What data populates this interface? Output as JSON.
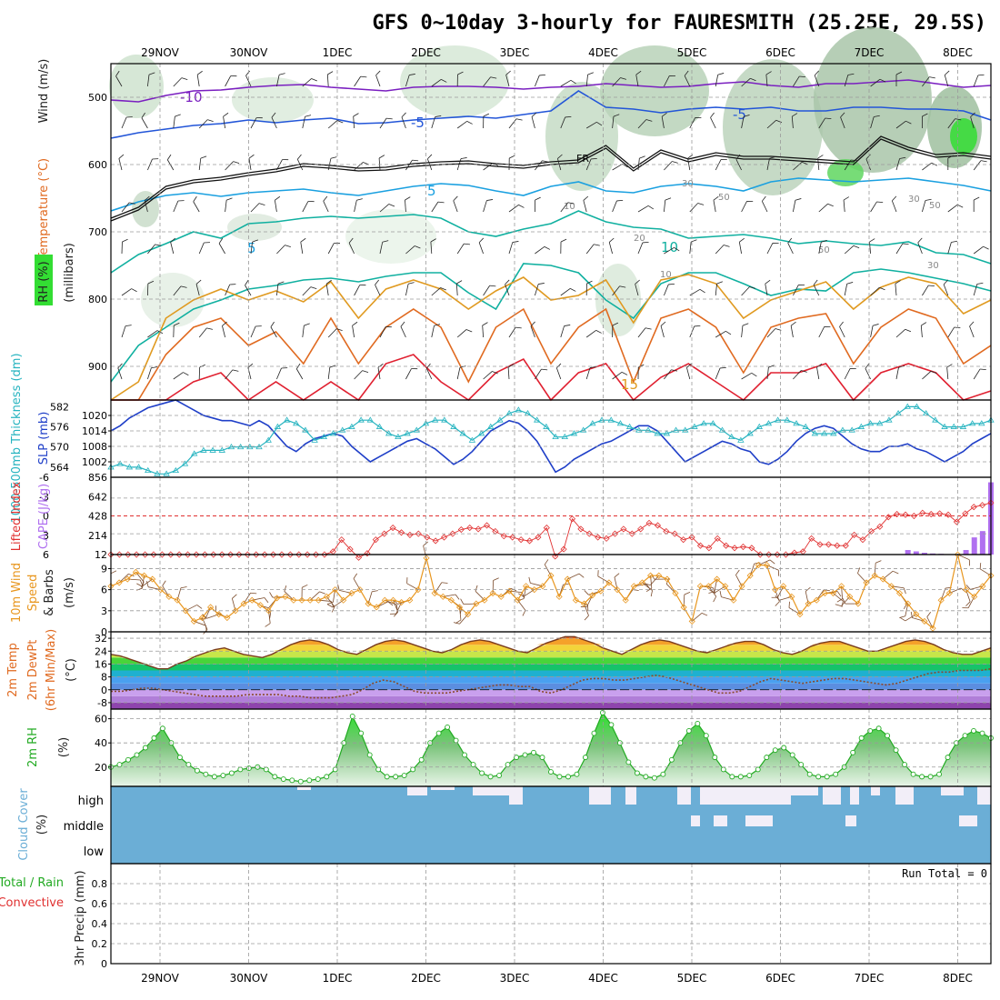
{
  "title": "GFS 0~10day 3-hourly for FAURESMITH (25.25E, 29.5S)",
  "colors": {
    "temp_cold": "#7a1fc0",
    "temp_blue": "#2255d8",
    "temp_cyan": "#1aa0e0",
    "temp_teal": "#10b0a0",
    "temp_warm": "#e09a20",
    "temp_orange": "#e06a20",
    "temp_red": "#e02030",
    "temp_magenta": "#d010a0",
    "rh_green": "#33dd33",
    "slp": "#1f3fc8",
    "thickness": "#27b4c0",
    "lifted": "#e03030",
    "cape": "#b070f0",
    "wind10": "#e8961e",
    "rh2m": "#22aa22",
    "cloud": "#6baed6",
    "cloud_clear": "#f2eef8"
  },
  "chart_data": [
    {
      "panel": "upper-air",
      "type": "heatmap",
      "title": "GFS 0~10day 3-hourly for FAURESMITH (25.25E, 29.5S)",
      "x_dates": [
        "29NOV",
        "30NOV",
        "1DEC",
        "2DEC",
        "3DEC",
        "4DEC",
        "5DEC",
        "6DEC",
        "7DEC",
        "8DEC"
      ],
      "ylabel_parts": [
        "RH (%)",
        "Temperature (°C)",
        "Wind (m/s)",
        "(millibars)"
      ],
      "yticks": [
        500,
        600,
        700,
        800,
        900
      ],
      "ylim": [
        450,
        950
      ],
      "freezing_level_label": "FR",
      "contour_labels": [
        "-10",
        "-5",
        "-5",
        "5",
        "5",
        "10",
        "15",
        "20",
        "10",
        "30",
        "30",
        "30",
        "50",
        "50",
        "50",
        "10"
      ]
    },
    {
      "panel": "slp-thickness",
      "type": "line",
      "ylabel_left": "1000-500mb Thickness (dm)",
      "ylabel_right": "SLP (mb)",
      "yticks_left": [
        564,
        570,
        576,
        582
      ],
      "yticks_right": [
        1002,
        1008,
        1014,
        1020
      ],
      "series": [
        {
          "name": "SLP (mb)",
          "color": "#1f3fc8",
          "values": [
            1014,
            1016,
            1019,
            1021,
            1023,
            1024,
            1025,
            1026,
            1024,
            1022,
            1020,
            1019,
            1018,
            1018,
            1017,
            1016,
            1018,
            1016,
            1012,
            1008,
            1006,
            1009,
            1011,
            1012,
            1013,
            1012,
            1008,
            1005,
            1002,
            1004,
            1006,
            1008,
            1010,
            1011,
            1009,
            1007,
            1004,
            1001,
            1003,
            1006,
            1010,
            1014,
            1016,
            1018,
            1017,
            1014,
            1010,
            1004,
            998,
            1000,
            1003,
            1005,
            1007,
            1009,
            1010,
            1012,
            1014,
            1016,
            1016,
            1014,
            1010,
            1006,
            1002,
            1004,
            1006,
            1008,
            1010,
            1009,
            1007,
            1006,
            1002,
            1001,
            1003,
            1006,
            1010,
            1013,
            1015,
            1016,
            1015,
            1012,
            1009,
            1007,
            1006,
            1006,
            1008,
            1008,
            1009,
            1007,
            1006,
            1004,
            1002,
            1004,
            1006,
            1009,
            1011,
            1013
          ]
        },
        {
          "name": "1000-500mb Thickness (dm)",
          "color": "#27b4c0",
          "values": [
            564,
            565,
            564,
            564,
            563,
            562,
            562,
            563,
            565,
            568,
            569,
            569,
            569,
            570,
            570,
            570,
            570,
            572,
            576,
            578,
            577,
            575,
            572,
            573,
            574,
            575,
            576,
            578,
            578,
            576,
            574,
            573,
            574,
            575,
            577,
            578,
            578,
            576,
            574,
            572,
            574,
            576,
            578,
            580,
            581,
            580,
            578,
            576,
            573,
            573,
            574,
            575,
            577,
            578,
            578,
            577,
            576,
            575,
            575,
            574,
            574,
            575,
            575,
            576,
            577,
            577,
            575,
            573,
            572,
            574,
            576,
            577,
            578,
            578,
            577,
            576,
            574,
            574,
            574,
            575,
            575,
            576,
            577,
            577,
            578,
            580,
            582,
            582,
            580,
            578,
            576,
            576,
            576,
            577,
            577,
            578
          ]
        }
      ]
    },
    {
      "panel": "lifted-cape",
      "type": "bar",
      "ylabel_left": "Lifted Index",
      "ylabel_right": "CAPE (J/kg)",
      "yticks_left": [
        -6,
        -3,
        0,
        3,
        6
      ],
      "yticks_right": [
        12,
        214,
        428,
        642,
        856
      ],
      "series": [
        {
          "name": "Lifted Index",
          "color": "#e03030",
          "values": [
            6.5,
            6.5,
            6.5,
            6.5,
            6.5,
            6.5,
            6.5,
            6.5,
            6.5,
            6.5,
            6.5,
            6.5,
            6.5,
            6.5,
            6.5,
            6.5,
            6.5,
            6.5,
            6.5,
            6.5,
            6.5,
            6.5,
            6.5,
            6.5,
            6.5,
            6.5,
            6.0,
            4.0,
            5.6,
            7.0,
            6.3,
            4.0,
            3.0,
            2.0,
            2.8,
            3.2,
            3.0,
            3.6,
            4.2,
            3.6,
            3.0,
            2.3,
            2.0,
            2.2,
            1.6,
            2.6,
            3.4,
            3.6,
            4.0,
            4.2,
            3.6,
            2.0,
            6.8,
            5.6,
            0.5,
            2.2,
            3.0,
            3.6,
            3.8,
            3.0,
            2.2,
            3.0,
            2.2,
            1.2,
            1.6,
            2.6,
            3.0,
            4.0,
            3.6,
            5.0,
            5.4,
            3.8,
            5.0,
            5.4,
            5.2,
            5.4,
            6.5,
            6.5,
            6.5,
            6.5,
            6.2,
            6.0,
            3.8,
            4.8,
            4.8,
            5.0,
            5.0,
            3.2,
            4.0,
            2.6,
            1.8,
            0.2,
            -0.3,
            -0.2,
            0.0,
            -0.5,
            -0.3,
            -0.4,
            -0.2,
            1.0,
            -0.4,
            -1.5,
            -1.8,
            -2.2
          ]
        },
        {
          "name": "CAPE (J/kg)",
          "color": "#b070f0",
          "values": [
            0,
            0,
            0,
            0,
            0,
            0,
            0,
            0,
            0,
            0,
            0,
            0,
            0,
            0,
            0,
            0,
            0,
            0,
            0,
            0,
            0,
            0,
            0,
            0,
            0,
            0,
            0,
            0,
            0,
            0,
            0,
            0,
            0,
            0,
            0,
            0,
            0,
            0,
            0,
            0,
            0,
            0,
            0,
            0,
            0,
            0,
            0,
            0,
            0,
            0,
            0,
            0,
            0,
            0,
            8,
            0,
            0,
            0,
            0,
            0,
            0,
            0,
            0,
            0,
            0,
            0,
            0,
            0,
            0,
            0,
            0,
            0,
            0,
            0,
            0,
            0,
            0,
            0,
            0,
            0,
            0,
            0,
            0,
            0,
            0,
            0,
            0,
            0,
            0,
            0,
            0,
            0,
            0,
            0,
            0,
            0,
            50,
            35,
            20,
            12,
            8,
            0,
            0,
            50,
            190,
            260,
            800
          ]
        }
      ]
    },
    {
      "panel": "wind10m",
      "type": "line",
      "ylabel": "10m Wind Speed & Barbs (m/s)",
      "yticks": [
        0,
        3,
        6,
        9
      ],
      "ylim": [
        0,
        11
      ],
      "series": [
        {
          "name": "10m Wind Speed",
          "color": "#e8961e",
          "values": [
            6.5,
            7.0,
            7.5,
            8.5,
            8.0,
            7.5,
            6.0,
            5.0,
            4.5,
            3.0,
            1.5,
            2.0,
            3.5,
            2.5,
            2.0,
            3.0,
            4.0,
            4.5,
            3.8,
            3.0,
            4.8,
            5.0,
            4.5,
            4.5,
            4.5,
            4.5,
            5.0,
            6.0,
            4.5,
            5.5,
            6.0,
            4.0,
            3.5,
            4.5,
            4.5,
            4.2,
            4.5,
            6.0,
            10.5,
            5.5,
            5.0,
            4.5,
            3.5,
            2.5,
            4.0,
            4.5,
            5.5,
            5.0,
            5.8,
            4.5,
            6.5,
            6.0,
            6.5,
            8.0,
            5.0,
            7.5,
            4.5,
            4.0,
            5.2,
            5.8,
            7.0,
            6.0,
            4.5,
            6.5,
            7.0,
            8.0,
            8.0,
            7.5,
            5.5,
            3.5,
            1.5,
            6.5,
            6.5,
            7.5,
            6.5,
            4.5,
            6.5,
            8.0,
            9.5,
            9.5,
            6.0,
            6.5,
            5.0,
            2.5,
            4.0,
            4.5,
            5.5,
            5.5,
            6.5,
            5.0,
            4.0,
            7.0,
            8.0,
            7.5,
            6.5,
            5.5,
            4.0,
            2.5,
            1.5,
            0.5,
            4.5,
            5.5,
            11.0,
            6.0,
            5.0,
            6.5,
            8.0
          ]
        }
      ]
    },
    {
      "panel": "temp2m",
      "type": "area",
      "ylabel": "2m Temp 2m DewPt (6hr Min/Max) (°C)",
      "yticks": [
        -8,
        0,
        8,
        16,
        24,
        32
      ],
      "ylim": [
        -12,
        36
      ],
      "series": [
        {
          "name": "2m Temp",
          "color": "#7a3c1e",
          "values": [
            22,
            21,
            19,
            17,
            15,
            13,
            13,
            16,
            18,
            21,
            23,
            25,
            26,
            24,
            22,
            21,
            20,
            22,
            25,
            28,
            30,
            31,
            30,
            28,
            25,
            23,
            22,
            25,
            28,
            30,
            31,
            30,
            28,
            26,
            24,
            23,
            25,
            28,
            30,
            31,
            30,
            28,
            26,
            24,
            23,
            26,
            29,
            31,
            33,
            33,
            31,
            29,
            26,
            24,
            22,
            25,
            28,
            30,
            31,
            30,
            28,
            26,
            24,
            23,
            25,
            27,
            29,
            30,
            30,
            28,
            25,
            23,
            22,
            24,
            27,
            29,
            30,
            30,
            28,
            26,
            24,
            24,
            26,
            28,
            30,
            31,
            30,
            28,
            25,
            23,
            22,
            22,
            24,
            26
          ]
        },
        {
          "name": "2m DewPt",
          "color": "#8a4a2a",
          "values": [
            -1,
            -1,
            0,
            1,
            1,
            0,
            -1,
            -2,
            -3,
            -4,
            -4,
            -4,
            -4,
            -3,
            -3,
            -3,
            -3,
            -4,
            -4,
            -5,
            -5,
            -5,
            -4,
            -3,
            0,
            4,
            6,
            5,
            2,
            -1,
            -2,
            -2,
            -2,
            -1,
            0,
            1,
            2,
            3,
            3,
            2,
            2,
            -1,
            -2,
            0,
            3,
            6,
            7,
            7,
            6,
            6,
            7,
            8,
            9,
            8,
            6,
            4,
            2,
            0,
            -2,
            -2,
            -1,
            2,
            5,
            7,
            6,
            5,
            4,
            5,
            6,
            7,
            7,
            6,
            5,
            4,
            3,
            4,
            6,
            8,
            10,
            11,
            11,
            12,
            12,
            12,
            13
          ]
        }
      ]
    },
    {
      "panel": "rh2m",
      "type": "area",
      "ylabel": "2m RH (%)",
      "yticks": [
        20,
        40,
        60
      ],
      "ylim": [
        4,
        68
      ],
      "series": [
        {
          "name": "2m RH",
          "color": "#22aa22",
          "values": [
            20,
            22,
            26,
            30,
            36,
            44,
            52,
            40,
            28,
            22,
            17,
            14,
            12,
            13,
            15,
            18,
            19,
            20,
            18,
            12,
            10,
            9,
            8,
            9,
            10,
            12,
            18,
            40,
            62,
            48,
            30,
            18,
            12,
            12,
            13,
            18,
            26,
            40,
            48,
            53,
            42,
            30,
            22,
            15,
            12,
            13,
            22,
            28,
            30,
            32,
            28,
            16,
            12,
            12,
            14,
            28,
            48,
            65,
            55,
            40,
            24,
            15,
            12,
            11,
            14,
            26,
            40,
            50,
            56,
            46,
            28,
            18,
            12,
            12,
            13,
            18,
            28,
            34,
            36,
            30,
            22,
            14,
            12,
            12,
            14,
            20,
            32,
            44,
            50,
            52,
            46,
            34,
            22,
            14,
            12,
            12,
            14,
            28,
            40,
            46,
            50,
            48,
            44
          ]
        }
      ]
    },
    {
      "panel": "cloud",
      "type": "heatmap",
      "ylabel": "Cloud Cover (%)",
      "levels": [
        "high",
        "middle",
        "low"
      ]
    },
    {
      "panel": "precip",
      "type": "bar",
      "ylabel": "3hr Precip (mm)",
      "legend": [
        "Total / Rain",
        "Convective"
      ],
      "yticks": [
        0,
        0.2,
        0.4,
        0.6,
        0.8
      ],
      "ylim": [
        0,
        1.0
      ],
      "run_total": "Run Total = 0",
      "values": []
    }
  ]
}
